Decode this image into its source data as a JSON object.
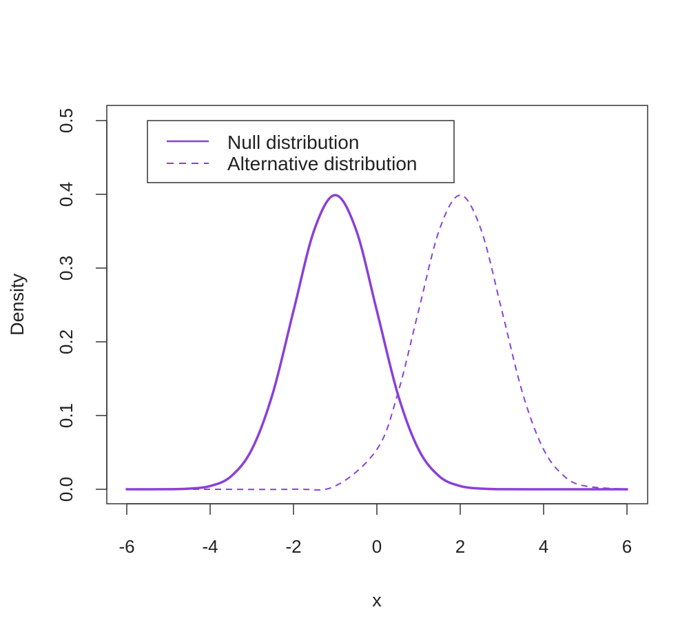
{
  "chart_data": {
    "type": "line",
    "title": "",
    "xlabel": "x",
    "ylabel": "Density",
    "xlim": [
      -6,
      6
    ],
    "ylim": [
      0,
      0.5
    ],
    "x_ticks": [
      -6,
      -4,
      -2,
      0,
      2,
      4,
      6
    ],
    "y_ticks": [
      0.0,
      0.1,
      0.2,
      0.3,
      0.4,
      0.5
    ],
    "x_tick_labels": [
      "-6",
      "-4",
      "-2",
      "0",
      "2",
      "4",
      "6"
    ],
    "y_tick_labels": [
      "0.0",
      "0.1",
      "0.2",
      "0.3",
      "0.4",
      "0.5"
    ],
    "grid": false,
    "legend_position": "top-left",
    "colors": {
      "series": "#8B3FD9",
      "axis": "#333333",
      "text": "#222222"
    },
    "series": [
      {
        "name": "Null distribution",
        "style": "solid",
        "x": [
          -6,
          -5,
          -4.5,
          -4,
          -3.5,
          -3,
          -2.5,
          -2,
          -1.5,
          -1,
          -0.5,
          0,
          0.5,
          1,
          1.5,
          2,
          2.5,
          3,
          4,
          5,
          6
        ],
        "y": [
          0.0,
          0.0001,
          0.0009,
          0.0044,
          0.0175,
          0.054,
          0.1295,
          0.242,
          0.3521,
          0.3989,
          0.3521,
          0.242,
          0.1295,
          0.054,
          0.0175,
          0.0044,
          0.0009,
          0.0001,
          0.0,
          0.0,
          0.0
        ]
      },
      {
        "name": "Alternative distribution",
        "style": "dashed",
        "x": [
          -6,
          -4,
          -2,
          -1,
          0,
          0.5,
          1,
          1.5,
          2,
          2.5,
          3,
          3.5,
          4,
          4.5,
          5,
          6
        ],
        "y": [
          0.0,
          0.0,
          0.0001,
          0.0044,
          0.054,
          0.1295,
          0.242,
          0.3521,
          0.3989,
          0.3521,
          0.242,
          0.1295,
          0.054,
          0.0175,
          0.0044,
          0.0001
        ]
      }
    ]
  }
}
